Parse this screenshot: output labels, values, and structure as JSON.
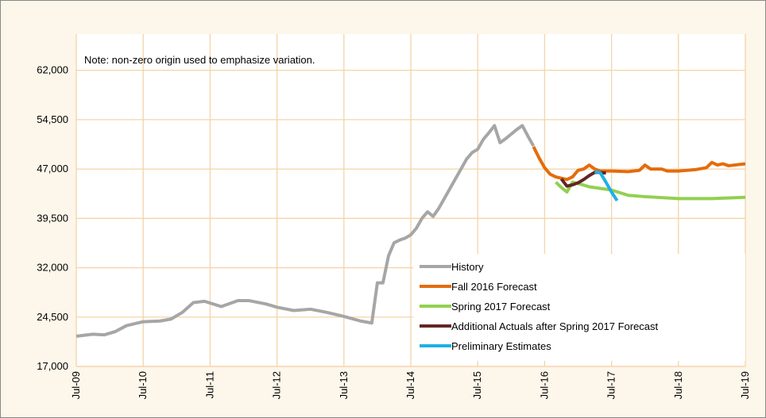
{
  "chart_data": {
    "type": "line",
    "note": "Note: non-zero origin used to emphasize variation.",
    "xlim": [
      "2009-07",
      "2019-07"
    ],
    "xticks": [
      {
        "value": "2009-07",
        "label": "Jul-09"
      },
      {
        "value": "2010-07",
        "label": "Jul-10"
      },
      {
        "value": "2011-07",
        "label": "Jul-11"
      },
      {
        "value": "2012-07",
        "label": "Jul-12"
      },
      {
        "value": "2013-07",
        "label": "Jul-13"
      },
      {
        "value": "2014-07",
        "label": "Jul-14"
      },
      {
        "value": "2015-07",
        "label": "Jul-15"
      },
      {
        "value": "2016-07",
        "label": "Jul-16"
      },
      {
        "value": "2017-07",
        "label": "Jul-17"
      },
      {
        "value": "2018-07",
        "label": "Jul-18"
      },
      {
        "value": "2019-07",
        "label": "Jul-19"
      }
    ],
    "ylim": [
      17000,
      67500
    ],
    "yticks": [
      {
        "value": 17000,
        "label": "17,000"
      },
      {
        "value": 24500,
        "label": "24,500"
      },
      {
        "value": 32000,
        "label": "32,000"
      },
      {
        "value": 39500,
        "label": "39,500"
      },
      {
        "value": 47000,
        "label": "47,000"
      },
      {
        "value": 54500,
        "label": "54,500"
      },
      {
        "value": 62000,
        "label": "62,000"
      }
    ],
    "grid": true,
    "legend": "lower-right",
    "series": [
      {
        "name": "History",
        "color": "#a6a6a6",
        "x": [
          "2009-07",
          "2009-10",
          "2009-12",
          "2010-02",
          "2010-04",
          "2010-07",
          "2010-10",
          "2010-12",
          "2011-02",
          "2011-04",
          "2011-06",
          "2011-09",
          "2011-12",
          "2012-02",
          "2012-05",
          "2012-07",
          "2012-10",
          "2013-01",
          "2013-04",
          "2013-07",
          "2013-10",
          "2013-12",
          "2014-01",
          "2014-02",
          "2014-03",
          "2014-04",
          "2014-05",
          "2014-06",
          "2014-07",
          "2014-08",
          "2014-09",
          "2014-10",
          "2014-11",
          "2014-12",
          "2015-01",
          "2015-02",
          "2015-03",
          "2015-04",
          "2015-05",
          "2015-06",
          "2015-07",
          "2015-08",
          "2015-09",
          "2015-10",
          "2015-11",
          "2015-12",
          "2016-01",
          "2016-02",
          "2016-03",
          "2016-04",
          "2016-05"
        ],
        "values": [
          21600,
          21900,
          21800,
          22300,
          23200,
          23800,
          23900,
          24200,
          25200,
          26700,
          26900,
          26100,
          27000,
          27000,
          26500,
          26000,
          25500,
          25700,
          25200,
          24600,
          23900,
          23600,
          29700,
          29700,
          33800,
          35800,
          36200,
          36500,
          37000,
          38000,
          39500,
          40500,
          39800,
          41000,
          42500,
          44000,
          45500,
          47000,
          48500,
          49500,
          50000,
          51500,
          52500,
          53600,
          51000,
          51600,
          52300,
          53000,
          53600,
          52000,
          50500
        ]
      },
      {
        "name": "Fall 2016 Forecast",
        "color": "#e46c0a",
        "x": [
          "2016-05",
          "2016-06",
          "2016-07",
          "2016-08",
          "2016-09",
          "2016-10",
          "2016-11",
          "2016-12",
          "2017-01",
          "2017-02",
          "2017-03",
          "2017-04",
          "2017-05",
          "2017-07",
          "2017-10",
          "2017-12",
          "2018-01",
          "2018-02",
          "2018-04",
          "2018-05",
          "2018-07",
          "2018-10",
          "2018-12",
          "2019-01",
          "2019-02",
          "2019-03",
          "2019-04",
          "2019-07"
        ],
        "values": [
          50400,
          48700,
          47200,
          46200,
          45800,
          45600,
          45400,
          45800,
          46800,
          47000,
          47600,
          47000,
          46700,
          46700,
          46600,
          46800,
          47600,
          47000,
          47000,
          46700,
          46700,
          46900,
          47200,
          48000,
          47600,
          47800,
          47500,
          47800
        ]
      },
      {
        "name": "Spring 2017 Forecast",
        "color": "#92d050",
        "x": [
          "2016-09",
          "2016-10",
          "2016-11",
          "2016-12",
          "2017-01",
          "2017-03",
          "2017-07",
          "2017-10",
          "2018-01",
          "2018-07",
          "2019-01",
          "2019-07"
        ],
        "values": [
          45000,
          44200,
          43500,
          45000,
          44800,
          44300,
          43800,
          43000,
          42800,
          42500,
          42500,
          42700
        ]
      },
      {
        "name": "Additional Actuals after Spring 2017 Forecast",
        "color": "#632523",
        "x": [
          "2016-10",
          "2016-11",
          "2016-12",
          "2017-01",
          "2017-02",
          "2017-03",
          "2017-04",
          "2017-06"
        ],
        "values": [
          45500,
          44400,
          44600,
          44900,
          45400,
          46000,
          46500,
          46400
        ]
      },
      {
        "name": "Preliminary Estimates",
        "color": "#1fb0e6",
        "x": [
          "2017-04",
          "2017-05",
          "2017-06",
          "2017-07",
          "2017-08"
        ],
        "values": [
          46600,
          46400,
          45000,
          43500,
          42200
        ]
      }
    ]
  }
}
